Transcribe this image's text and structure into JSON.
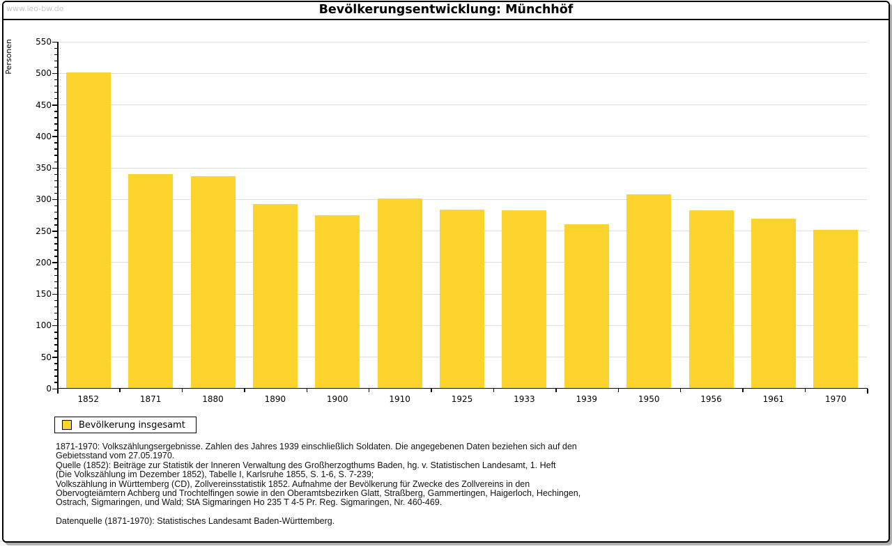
{
  "watermark": "www.leo-bw.de",
  "chart_data": {
    "type": "bar",
    "title": "Bevölkerungsentwicklung: Münchhöf",
    "ylabel": "Personen",
    "xlabel": "",
    "categories": [
      "1852",
      "1871",
      "1880",
      "1890",
      "1900",
      "1910",
      "1925",
      "1933",
      "1939",
      "1950",
      "1956",
      "1961",
      "1970"
    ],
    "values": [
      501,
      340,
      337,
      293,
      275,
      302,
      284,
      283,
      261,
      308,
      283,
      270,
      252
    ],
    "series_name": "Bevölkerung insgesamt",
    "ylim": [
      0,
      550
    ],
    "yticks": [
      0,
      50,
      100,
      150,
      200,
      250,
      300,
      350,
      400,
      450,
      500,
      550
    ],
    "ytick_minor_step": 10,
    "grid": "horizontal-major",
    "legend_position": "bottom-left",
    "bar_color": "#FCD42D"
  },
  "legend": {
    "label": "Bevölkerung insgesamt"
  },
  "footer": {
    "lines": [
      "1871-1970: Volkszählungsergebnisse. Zahlen des Jahres 1939 einschließlich Soldaten. Die angegebenen Daten beziehen sich auf den",
      "Gebietsstand vom 27.05.1970.",
      "Quelle (1852): Beiträge zur Statistik der Inneren Verwaltung des Großherzogthums Baden, hg. v. Statistischen Landesamt, 1. Heft",
      "(Die Volkszählung im Dezember 1852), Tabelle I, Karlsruhe 1855, S. 1-6, S. 7-239;",
      "Volkszählung in Württemberg (CD), Zollvereinsstatistik 1852. Aufnahme der Bevölkerung für Zwecke des Zollvereins in den",
      "Obervogteiämtern Achberg und Trochtelfingen sowie in den Oberamtsbezirken Glatt, Straßberg, Gammertingen, Haigerloch, Hechingen,",
      "Ostrach, Sigmaringen, und Wald; StA Sigmaringen Ho 235 T 4-5 Pr. Reg. Sigmaringen, Nr. 460-469."
    ],
    "datasource": "Datenquelle (1871-1970): Statistisches Landesamt Baden-Württemberg."
  }
}
